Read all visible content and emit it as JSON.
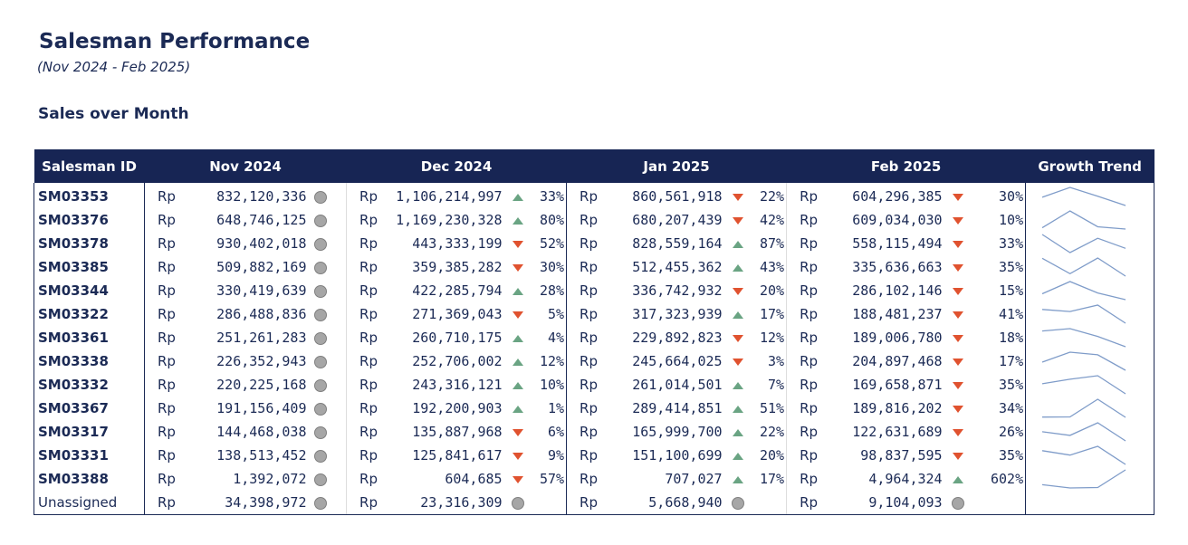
{
  "header": {
    "title": "Salesman Performance",
    "subtitle": "(Nov 2024 - Feb 2025)",
    "section_title": "Sales over Month"
  },
  "columns": [
    "Salesman ID",
    "Nov 2024",
    "Dec 2024",
    "Jan 2025",
    "Feb 2025",
    "Growth Trend"
  ],
  "currency": "Rp",
  "indicator_colors": {
    "up": "#6aa483",
    "down": "#e0522f",
    "neutral": "#a6a6a6"
  },
  "rows": [
    {
      "id": "SM03353",
      "bold": true,
      "nov": "832,120,336",
      "dec": "1,106,214,997",
      "dec_dir": "up",
      "dec_pct": "33%",
      "jan": "860,561,918",
      "jan_dir": "down",
      "jan_pct": "22%",
      "feb": "604,296,385",
      "feb_dir": "down",
      "feb_pct": "30%",
      "series": [
        832120336,
        1106214997,
        860561918,
        604296385
      ]
    },
    {
      "id": "SM03376",
      "bold": true,
      "nov": "648,746,125",
      "dec": "1,169,230,328",
      "dec_dir": "up",
      "dec_pct": "80%",
      "jan": "680,207,439",
      "jan_dir": "down",
      "jan_pct": "42%",
      "feb": "609,034,030",
      "feb_dir": "down",
      "feb_pct": "10%",
      "series": [
        648746125,
        1169230328,
        680207439,
        609034030
      ]
    },
    {
      "id": "SM03378",
      "bold": true,
      "nov": "930,402,018",
      "dec": "443,333,199",
      "dec_dir": "down",
      "dec_pct": "52%",
      "jan": "828,559,164",
      "jan_dir": "up",
      "jan_pct": "87%",
      "feb": "558,115,494",
      "feb_dir": "down",
      "feb_pct": "33%",
      "series": [
        930402018,
        443333199,
        828559164,
        558115494
      ]
    },
    {
      "id": "SM03385",
      "bold": true,
      "nov": "509,882,169",
      "dec": "359,385,282",
      "dec_dir": "down",
      "dec_pct": "30%",
      "jan": "512,455,362",
      "jan_dir": "up",
      "jan_pct": "43%",
      "feb": "335,636,663",
      "feb_dir": "down",
      "feb_pct": "35%",
      "series": [
        509882169,
        359385282,
        512455362,
        335636663
      ]
    },
    {
      "id": "SM03344",
      "bold": true,
      "nov": "330,419,639",
      "dec": "422,285,794",
      "dec_dir": "up",
      "dec_pct": "28%",
      "jan": "336,742,932",
      "jan_dir": "down",
      "jan_pct": "20%",
      "feb": "286,102,146",
      "feb_dir": "down",
      "feb_pct": "15%",
      "series": [
        330419639,
        422285794,
        336742932,
        286102146
      ]
    },
    {
      "id": "SM03322",
      "bold": true,
      "nov": "286,488,836",
      "dec": "271,369,043",
      "dec_dir": "down",
      "dec_pct": "5%",
      "jan": "317,323,939",
      "jan_dir": "up",
      "jan_pct": "17%",
      "feb": "188,481,237",
      "feb_dir": "down",
      "feb_pct": "41%",
      "series": [
        286488836,
        271369043,
        317323939,
        188481237
      ]
    },
    {
      "id": "SM03361",
      "bold": true,
      "nov": "251,261,283",
      "dec": "260,710,175",
      "dec_dir": "up",
      "dec_pct": "4%",
      "jan": "229,892,823",
      "jan_dir": "down",
      "jan_pct": "12%",
      "feb": "189,006,780",
      "feb_dir": "down",
      "feb_pct": "18%",
      "series": [
        251261283,
        260710175,
        229892823,
        189006780
      ]
    },
    {
      "id": "SM03338",
      "bold": true,
      "nov": "226,352,943",
      "dec": "252,706,002",
      "dec_dir": "up",
      "dec_pct": "12%",
      "jan": "245,664,025",
      "jan_dir": "down",
      "jan_pct": "3%",
      "feb": "204,897,468",
      "feb_dir": "down",
      "feb_pct": "17%",
      "series": [
        226352943,
        252706002,
        245664025,
        204897468
      ]
    },
    {
      "id": "SM03332",
      "bold": true,
      "nov": "220,225,168",
      "dec": "243,316,121",
      "dec_dir": "up",
      "dec_pct": "10%",
      "jan": "261,014,501",
      "jan_dir": "up",
      "jan_pct": "7%",
      "feb": "169,658,871",
      "feb_dir": "down",
      "feb_pct": "35%",
      "series": [
        220225168,
        243316121,
        261014501,
        169658871
      ]
    },
    {
      "id": "SM03367",
      "bold": true,
      "nov": "191,156,409",
      "dec": "192,200,903",
      "dec_dir": "up",
      "dec_pct": "1%",
      "jan": "289,414,851",
      "jan_dir": "up",
      "jan_pct": "51%",
      "feb": "189,816,202",
      "feb_dir": "down",
      "feb_pct": "34%",
      "series": [
        191156409,
        192200903,
        289414851,
        189816202
      ]
    },
    {
      "id": "SM03317",
      "bold": true,
      "nov": "144,468,038",
      "dec": "135,887,968",
      "dec_dir": "down",
      "dec_pct": "6%",
      "jan": "165,999,700",
      "jan_dir": "up",
      "jan_pct": "22%",
      "feb": "122,631,689",
      "feb_dir": "down",
      "feb_pct": "26%",
      "series": [
        144468038,
        135887968,
        165999700,
        122631689
      ]
    },
    {
      "id": "SM03331",
      "bold": true,
      "nov": "138,513,452",
      "dec": "125,841,617",
      "dec_dir": "down",
      "dec_pct": "9%",
      "jan": "151,100,699",
      "jan_dir": "up",
      "jan_pct": "20%",
      "feb": "98,837,595",
      "feb_dir": "down",
      "feb_pct": "35%",
      "series": [
        138513452,
        125841617,
        151100699,
        98837595
      ]
    },
    {
      "id": "SM03388",
      "bold": true,
      "nov": "1,392,072",
      "dec": "604,685",
      "dec_dir": "down",
      "dec_pct": "57%",
      "jan": "707,027",
      "jan_dir": "up",
      "jan_pct": "17%",
      "feb": "4,964,324",
      "feb_dir": "up",
      "feb_pct": "602%",
      "series": [
        1392072,
        604685,
        707027,
        4964324
      ]
    },
    {
      "id": "Unassigned",
      "bold": false,
      "nov": "34,398,972",
      "dec": "23,316,309",
      "dec_dir": "neutral",
      "dec_pct": "",
      "jan": "5,668,940",
      "jan_dir": "neutral",
      "jan_pct": "",
      "feb": "9,104,093",
      "feb_dir": "neutral",
      "feb_pct": "",
      "series": []
    }
  ]
}
